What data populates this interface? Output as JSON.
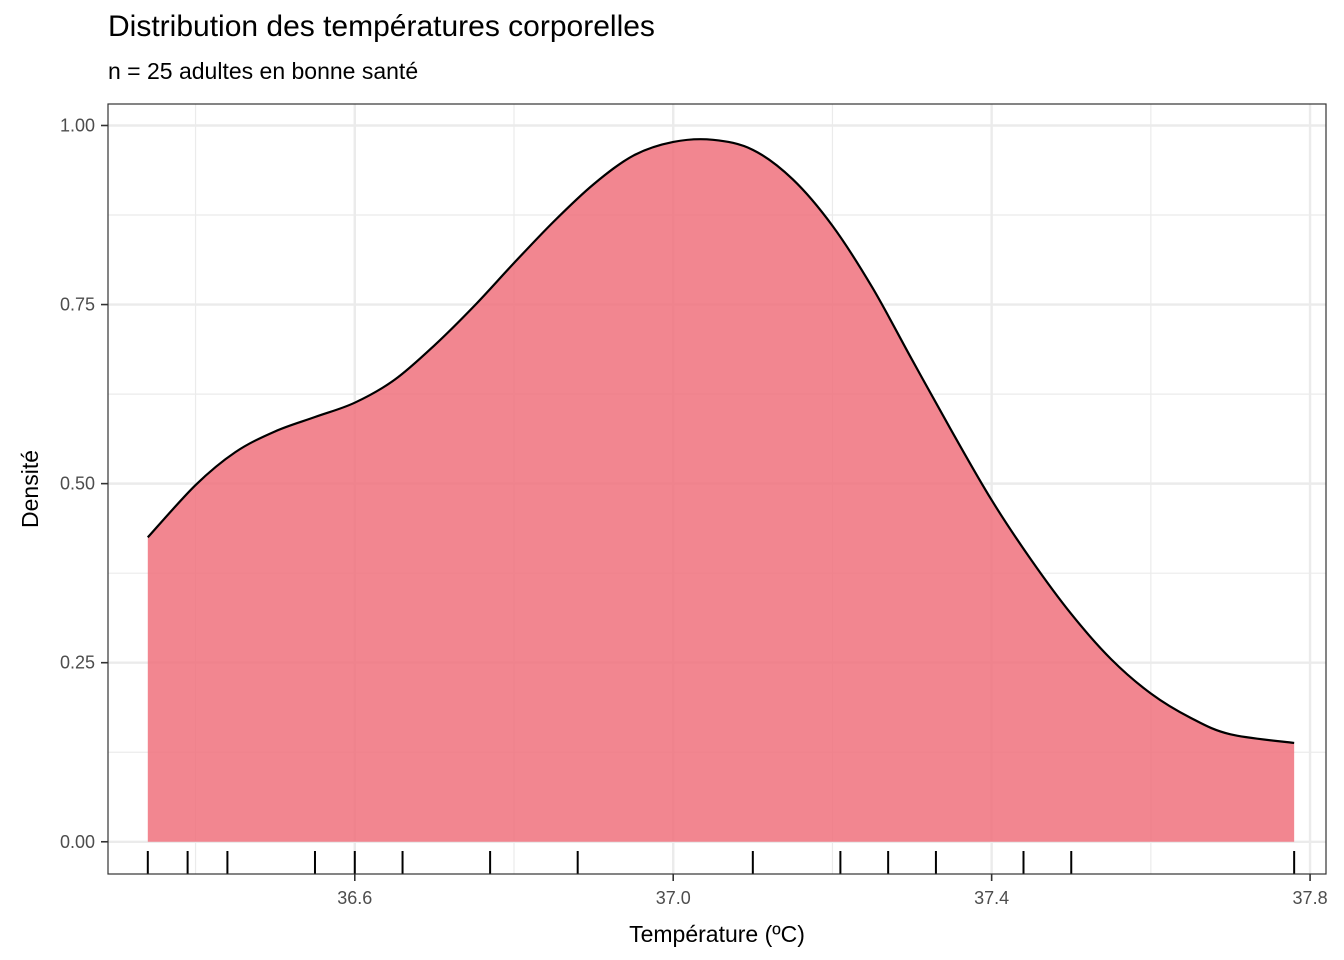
{
  "chart_data": {
    "type": "area",
    "title": "Distribution des températures corporelles",
    "subtitle": "n = 25 adultes en bonne santé",
    "xlabel": "Température (ºC)",
    "ylabel": "Densité",
    "xlim": [
      36.29,
      37.82
    ],
    "ylim": [
      -0.045,
      1.03
    ],
    "x_ticks": [
      36.6,
      37.0,
      37.4,
      37.8
    ],
    "x_tick_labels": [
      "36.6",
      "37.0",
      "37.4",
      "37.8"
    ],
    "y_ticks": [
      0.0,
      0.25,
      0.5,
      0.75,
      1.0
    ],
    "y_tick_labels": [
      "0.00",
      "0.25",
      "0.50",
      "0.75",
      "1.00"
    ],
    "grid": true,
    "density_curve": {
      "x": [
        36.34,
        36.4,
        36.45,
        36.5,
        36.55,
        36.6,
        36.65,
        36.7,
        36.75,
        36.8,
        36.85,
        36.9,
        36.95,
        37.0,
        37.05,
        37.1,
        37.15,
        37.2,
        37.25,
        37.3,
        37.35,
        37.4,
        37.45,
        37.5,
        37.55,
        37.6,
        37.65,
        37.7,
        37.78
      ],
      "y": [
        0.425,
        0.498,
        0.544,
        0.573,
        0.593,
        0.613,
        0.645,
        0.693,
        0.748,
        0.808,
        0.866,
        0.918,
        0.958,
        0.977,
        0.98,
        0.966,
        0.925,
        0.86,
        0.774,
        0.673,
        0.573,
        0.477,
        0.393,
        0.318,
        0.255,
        0.207,
        0.173,
        0.15,
        0.138
      ]
    },
    "rug_x": [
      36.34,
      36.39,
      36.44,
      36.55,
      36.6,
      36.66,
      36.77,
      36.88,
      37.1,
      37.21,
      37.27,
      37.33,
      37.44,
      37.5,
      37.78
    ],
    "fill_color": "#F0717D",
    "fill_opacity": 0.85,
    "line_color": "#000000",
    "grid_color": "#EBEBEB",
    "panel_border_color": "#333333"
  }
}
